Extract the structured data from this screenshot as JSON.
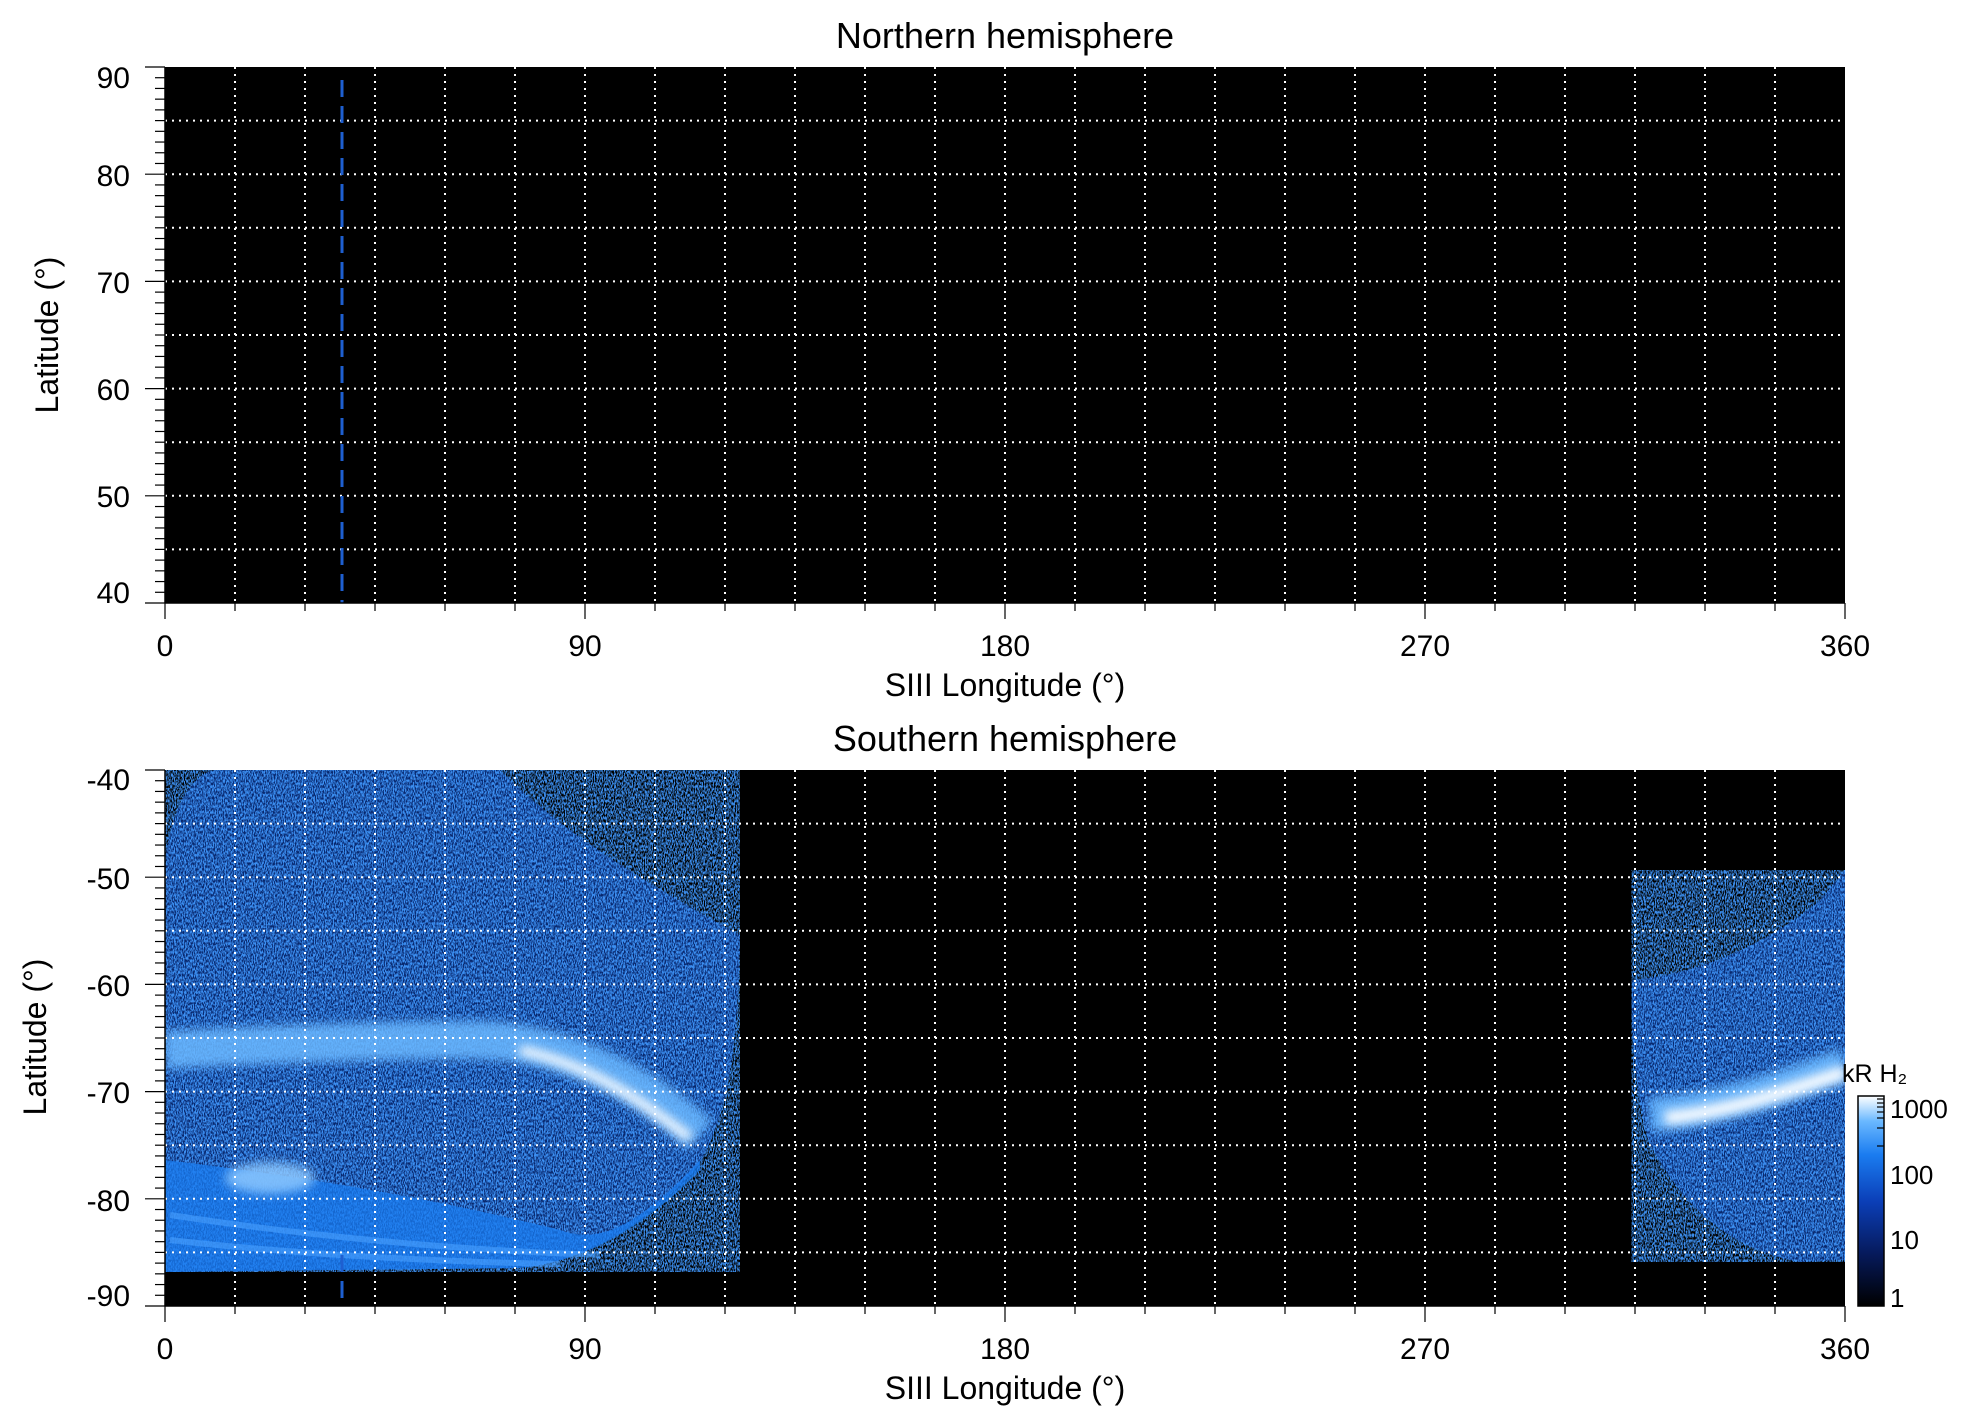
{
  "chart_data": [
    {
      "type": "heatmap",
      "title": "Northern hemisphere",
      "xlabel": "SIII Longitude (°)",
      "ylabel": "Latitude (°)",
      "xlim": [
        0,
        360
      ],
      "ylim": [
        40,
        90
      ],
      "x_ticks": [
        "0",
        "90",
        "180",
        "270",
        "360"
      ],
      "y_ticks": [
        "90",
        "80",
        "70",
        "60",
        "50",
        "40"
      ],
      "grid": true,
      "grid_style": "dotted-white",
      "background": "#000000",
      "marker_line": {
        "longitude": 38,
        "style": "dashed",
        "color": "#1e5fd0"
      },
      "emission_regions": []
    },
    {
      "type": "heatmap",
      "title": "Southern hemisphere",
      "xlabel": "SIII Longitude (°)",
      "ylabel": "Latitude (°)",
      "xlim": [
        0,
        360
      ],
      "ylim": [
        -90,
        -40
      ],
      "x_ticks": [
        "0",
        "90",
        "180",
        "270",
        "360"
      ],
      "y_ticks": [
        "-40",
        "-50",
        "-60",
        "-70",
        "-80",
        "-90"
      ],
      "grid": true,
      "grid_style": "dotted-white",
      "background": "#000000",
      "marker_line": {
        "longitude": 38,
        "style": "dashed",
        "color": "#1e5fd0"
      },
      "emission_regions": [
        {
          "lon_range": [
            0,
            123
          ],
          "lat_range": [
            -87,
            -40
          ],
          "description": "noisy blue emission with bright auroral oval"
        },
        {
          "lon_range": [
            315,
            360
          ],
          "lat_range": [
            -86,
            -50
          ],
          "description": "noisy blue emission with bright auroral oval"
        }
      ],
      "bright_features": [
        {
          "lon": [
            0,
            115
          ],
          "lat": [
            -68,
            -75
          ],
          "level_kR": 1000
        },
        {
          "lon": [
            320,
            360
          ],
          "lat": [
            -72,
            -70
          ],
          "level_kR": 1000
        },
        {
          "lon": [
            20,
            30
          ],
          "lat": [
            -79,
            -81
          ],
          "level_kR": 300
        }
      ]
    }
  ],
  "colorbar": {
    "title": "kR H₂",
    "scale": "log",
    "range": [
      1,
      1000
    ],
    "ticks": [
      "1000",
      "100",
      "10",
      "1"
    ],
    "colors": [
      "#000000",
      "#061a5c",
      "#0b3fb8",
      "#1a7cf0",
      "#6ab8ff",
      "#ffffff"
    ]
  }
}
